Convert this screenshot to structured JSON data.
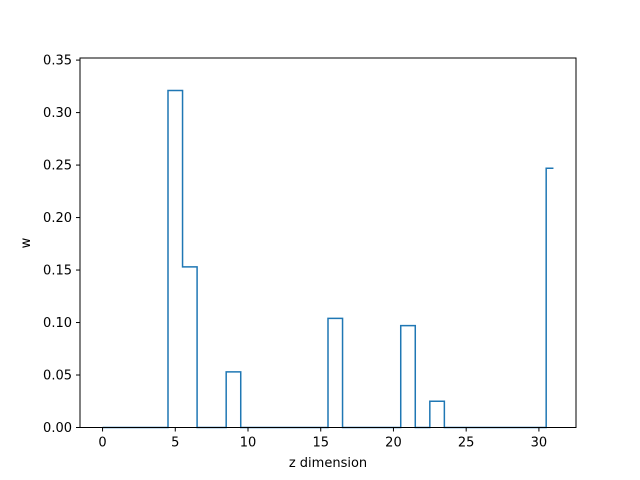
{
  "chart_data": {
    "type": "line",
    "drawstyle": "steps-mid",
    "xlabel": "z dimension",
    "ylabel": "w",
    "xlim": [
      -1.55,
      32.55
    ],
    "ylim": [
      0,
      0.352
    ],
    "x_ticks": [
      0,
      5,
      10,
      15,
      20,
      25,
      30
    ],
    "x_tick_labels": [
      "0",
      "5",
      "10",
      "15",
      "20",
      "25",
      "30"
    ],
    "y_ticks": [
      0.0,
      0.05,
      0.1,
      0.15,
      0.2,
      0.25,
      0.3,
      0.35
    ],
    "y_tick_labels": [
      "0.00",
      "0.05",
      "0.10",
      "0.15",
      "0.20",
      "0.25",
      "0.30",
      "0.35"
    ],
    "grid": false,
    "series": [
      {
        "color": "#1f77b4",
        "x": [
          0,
          1,
          2,
          3,
          4,
          5,
          6,
          7,
          8,
          9,
          10,
          11,
          12,
          13,
          14,
          15,
          16,
          17,
          18,
          19,
          20,
          21,
          22,
          23,
          24,
          25,
          26,
          27,
          28,
          29,
          30,
          31
        ],
        "y": [
          0,
          0,
          0,
          0,
          0,
          0.321,
          0.153,
          0,
          0,
          0.053,
          0,
          0,
          0,
          0,
          0,
          0,
          0.104,
          0,
          0,
          0,
          0,
          0.097,
          0,
          0.025,
          0,
          0,
          0,
          0,
          0,
          0,
          0,
          0.247
        ]
      }
    ]
  }
}
